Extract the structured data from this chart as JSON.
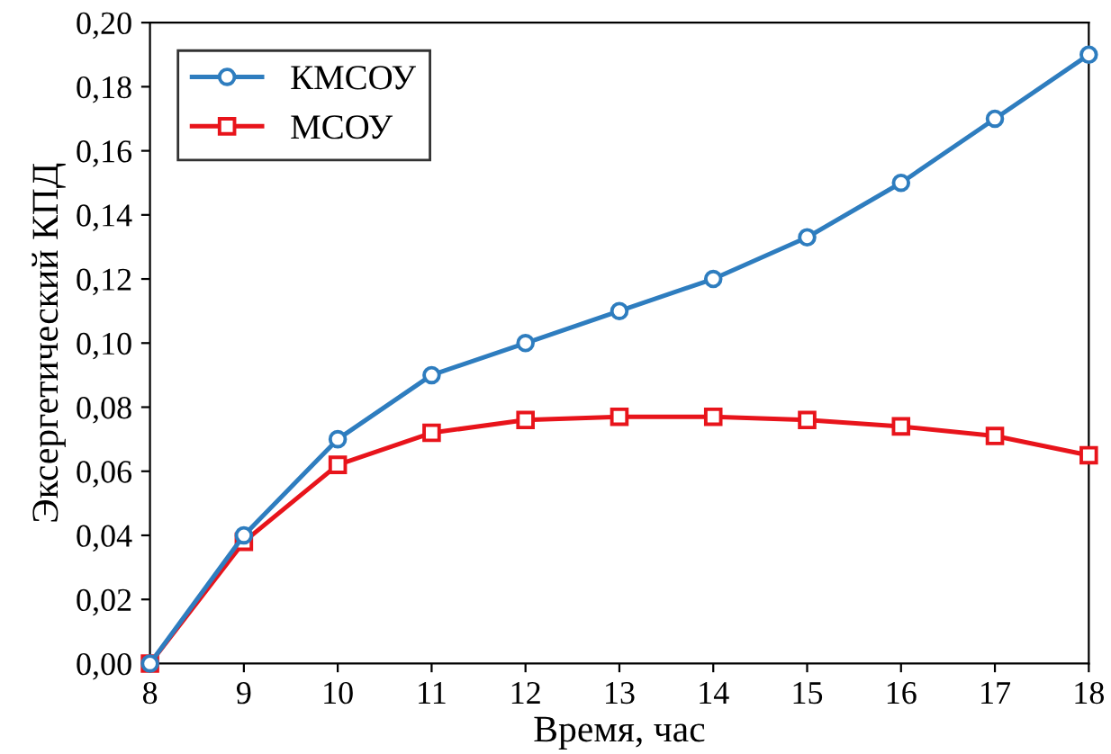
{
  "chart_data": {
    "type": "line",
    "xlabel": "Время, час",
    "ylabel": "Эксергетический КПД",
    "x": [
      8,
      9,
      10,
      11,
      12,
      13,
      14,
      15,
      16,
      17,
      18
    ],
    "series": [
      {
        "name": "КМСОУ",
        "color": "#2e7dbf",
        "marker": "circle",
        "values": [
          0.0,
          0.04,
          0.07,
          0.09,
          0.1,
          0.11,
          0.12,
          0.133,
          0.15,
          0.17,
          0.19
        ]
      },
      {
        "name": "МСОУ",
        "color": "#e8141b",
        "marker": "square",
        "values": [
          0.0,
          0.038,
          0.062,
          0.072,
          0.076,
          0.077,
          0.077,
          0.076,
          0.074,
          0.071,
          0.065
        ]
      }
    ],
    "xlim": [
      8,
      18
    ],
    "xticks": [
      8,
      9,
      10,
      11,
      12,
      13,
      14,
      15,
      16,
      17,
      18
    ],
    "ylim": [
      0,
      0.2
    ],
    "yticks": [
      {
        "value": 0,
        "label": "0,00"
      },
      {
        "value": 0.02,
        "label": "0,02"
      },
      {
        "value": 0.04,
        "label": "0,04"
      },
      {
        "value": 0.06,
        "label": "0,06"
      },
      {
        "value": 0.08,
        "label": "0,08"
      },
      {
        "value": 0.1,
        "label": "0,10"
      },
      {
        "value": 0.12,
        "label": "0,12"
      },
      {
        "value": 0.14,
        "label": "0,14"
      },
      {
        "value": 0.16,
        "label": "0,16"
      },
      {
        "value": 0.18,
        "label": "0,18"
      },
      {
        "value": 0.2,
        "label": "0,20"
      }
    ],
    "legend": "top left",
    "grid": false,
    "line_style": "solid"
  }
}
